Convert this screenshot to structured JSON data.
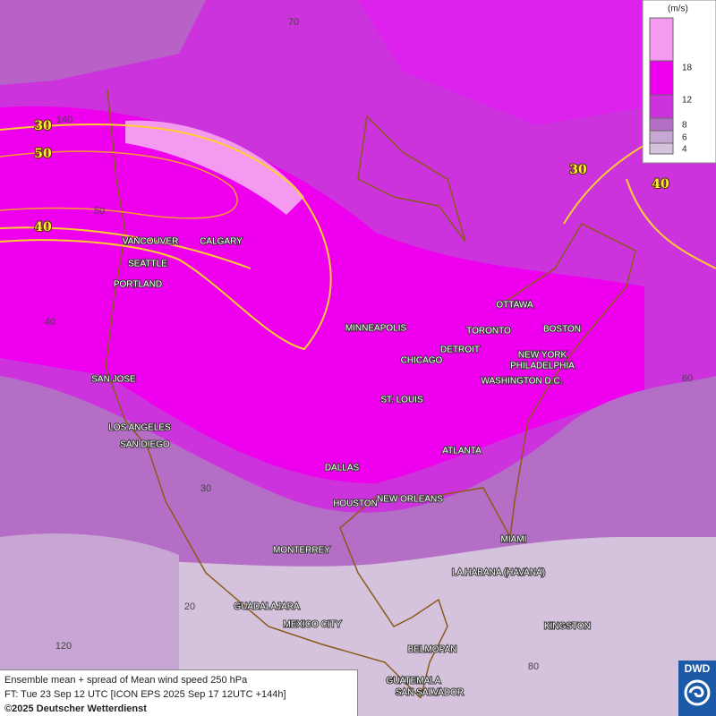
{
  "legend": {
    "unit": "(m/s)",
    "ticks": [
      18,
      12,
      8,
      6,
      4
    ]
  },
  "contour_labels": [
    30,
    50,
    40,
    30,
    40
  ],
  "grid_labels": [
    70,
    140,
    50,
    40,
    60,
    30,
    20,
    120,
    80
  ],
  "cities": [
    "VANCOUVER",
    "CALGARY",
    "SEATTLE",
    "PORTLAND",
    "MINNEAPOLIS",
    "OTTAWA",
    "TORONTO",
    "BOSTON",
    "DETROIT",
    "CHICAGO",
    "NEW YORK",
    "PHILADELPHIA",
    "WASHINGTON D.C.",
    "SAN JOSE",
    "ST. LOUIS",
    "LOS ANGELES",
    "SAN DIEGO",
    "ATLANTA",
    "DALLAS",
    "HOUSTON",
    "NEW ORLEANS",
    "MIAMI",
    "MONTERREY",
    "LA HABANA (HAVANA)",
    "GUADALAJARA",
    "MEXICO CITY",
    "KINGSTON",
    "BELMOPAN",
    "GUATEMALA",
    "SAN SALVADOR"
  ],
  "footer": {
    "line1": "Ensemble mean + spread of Mean wind speed 250 hPa",
    "line2": "FT: Tue 23 Sep 12 UTC [ICON EPS 2025 Sep 17 12UTC +144h]",
    "line3": "©2025 Deutscher Wetterdienst"
  },
  "logo": "DWD"
}
